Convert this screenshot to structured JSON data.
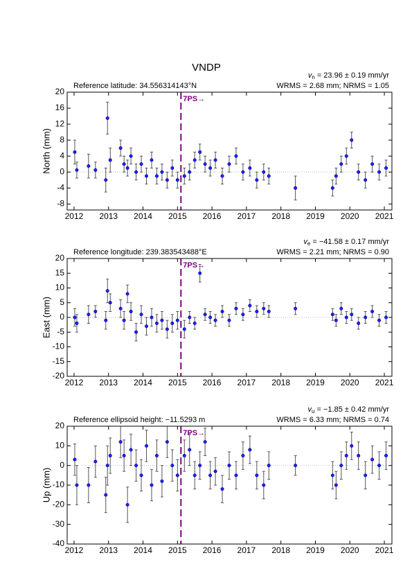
{
  "title": "VNDP",
  "chart_data": [
    {
      "type": "scatter",
      "ylabel": "North (mm)",
      "reference": "Reference latitude: 34.556314143°N",
      "rate": {
        "symbol": "v",
        "sub": "n",
        "text": " = 23.96 ± 0.19 mm/yr"
      },
      "stats": "WRMS = 2.68 mm; NRMS = 1.05",
      "xlim": [
        2011.8,
        2021.22
      ],
      "xticks": [
        2012,
        2013,
        2014,
        2015,
        2016,
        2017,
        2018,
        2019,
        2020,
        2021
      ],
      "ylim": [
        -9.5,
        20
      ],
      "yticks": [
        -8,
        -4,
        0,
        4,
        8,
        12,
        16,
        20
      ],
      "reference_line": 0,
      "event": {
        "x": 2015.1,
        "label": "7PS→",
        "color": "#800080"
      },
      "series": [
        {
          "color": "#1f1fff",
          "error_color": "#555555",
          "x": [
            2012.02,
            2012.08,
            2012.42,
            2012.62,
            2012.92,
            2012.97,
            2013.05,
            2013.35,
            2013.45,
            2013.55,
            2013.65,
            2013.8,
            2013.95,
            2014.1,
            2014.25,
            2014.4,
            2014.55,
            2014.7,
            2014.85,
            2015.0,
            2015.2,
            2015.35,
            2015.5,
            2015.65,
            2015.8,
            2015.95,
            2016.1,
            2016.3,
            2016.5,
            2016.7,
            2016.9,
            2017.1,
            2017.3,
            2017.5,
            2017.65,
            2018.42,
            2019.5,
            2019.6,
            2019.75,
            2019.9,
            2020.05,
            2020.25,
            2020.45,
            2020.65,
            2020.85,
            2021.05
          ],
          "values": [
            5,
            0.5,
            1.5,
            0.5,
            -2,
            13.5,
            3,
            6,
            2,
            1,
            4,
            0,
            2,
            -1,
            3,
            -1,
            0,
            -2,
            1,
            -2,
            -1,
            0,
            3,
            5,
            2,
            1,
            3,
            -1,
            2,
            4,
            0,
            1,
            -2,
            0,
            -1,
            -4,
            -4,
            -1,
            2,
            4,
            8,
            0,
            -2,
            2,
            0,
            1
          ],
          "errors": [
            3,
            2,
            3,
            2,
            3,
            4,
            3,
            2,
            2,
            2,
            2,
            2,
            2,
            2,
            2,
            2,
            2,
            2,
            2,
            2,
            2,
            2,
            2,
            2,
            2,
            2,
            2,
            2,
            2,
            2,
            2,
            2,
            2,
            2,
            2,
            3,
            2,
            2,
            2,
            2,
            2,
            2,
            2,
            2,
            2,
            2
          ]
        }
      ]
    },
    {
      "type": "scatter",
      "ylabel": "East (mm)",
      "reference": "Reference longitude: 239.383543488°E",
      "rate": {
        "symbol": "v",
        "sub": "e",
        "text": " = −41.58 ± 0.17 mm/yr"
      },
      "stats": "WRMS = 2.21 mm; NRMS = 0.90",
      "xlim": [
        2011.8,
        2021.22
      ],
      "xticks": [
        2012,
        2013,
        2014,
        2015,
        2016,
        2017,
        2018,
        2019,
        2020,
        2021
      ],
      "ylim": [
        -20,
        20
      ],
      "yticks": [
        -20,
        -15,
        -10,
        -5,
        0,
        5,
        10,
        15,
        20
      ],
      "reference_line": 0,
      "event": {
        "x": 2015.1,
        "label": "7PS→",
        "color": "#800080"
      },
      "series": [
        {
          "color": "#1f1fff",
          "error_color": "#555555",
          "x": [
            2012.02,
            2012.08,
            2012.42,
            2012.62,
            2012.92,
            2012.97,
            2013.05,
            2013.35,
            2013.45,
            2013.55,
            2013.65,
            2013.8,
            2013.95,
            2014.1,
            2014.25,
            2014.4,
            2014.55,
            2014.7,
            2014.85,
            2015.0,
            2015.2,
            2015.35,
            2015.5,
            2015.65,
            2015.8,
            2015.95,
            2016.1,
            2016.3,
            2016.5,
            2016.7,
            2016.9,
            2017.1,
            2017.3,
            2017.5,
            2017.65,
            2018.42,
            2019.5,
            2019.6,
            2019.75,
            2019.9,
            2020.05,
            2020.25,
            2020.45,
            2020.65,
            2020.85,
            2021.05
          ],
          "values": [
            0,
            -2,
            1,
            2,
            -1,
            9,
            5,
            3,
            -1,
            8,
            2,
            -5,
            1,
            -3,
            0,
            -2,
            -1,
            -4,
            -2,
            -1,
            -4,
            0,
            -2,
            15,
            1,
            0,
            -1,
            2,
            -1,
            3,
            1,
            4,
            2,
            3,
            2,
            3,
            1,
            -1,
            3,
            0,
            1,
            -2,
            0,
            2,
            -1,
            0
          ],
          "errors": [
            3,
            3,
            3,
            2,
            3,
            4,
            3,
            3,
            3,
            3,
            3,
            3,
            3,
            3,
            3,
            3,
            3,
            3,
            3,
            3,
            3,
            2,
            2,
            3,
            2,
            2,
            2,
            2,
            2,
            2,
            2,
            2,
            2,
            2,
            2,
            2,
            2,
            2,
            2,
            2,
            2,
            2,
            2,
            2,
            2,
            2
          ]
        }
      ]
    },
    {
      "type": "scatter",
      "ylabel": "Up (mm)",
      "reference": "Reference ellipsoid height: −11.5293 m",
      "rate": {
        "symbol": "v",
        "sub": "u",
        "text": " = −1.85 ± 0.42 mm/yr"
      },
      "stats": "WRMS = 6.33 mm; NRMS = 0.74",
      "xlim": [
        2011.8,
        2021.22
      ],
      "xticks": [
        2012,
        2013,
        2014,
        2015,
        2016,
        2017,
        2018,
        2019,
        2020,
        2021
      ],
      "ylim": [
        -40,
        20
      ],
      "yticks": [
        -40,
        -30,
        -20,
        -10,
        0,
        10,
        20
      ],
      "reference_line": 0,
      "event": {
        "x": 2015.1,
        "label": "7PS→",
        "color": "#800080"
      },
      "series": [
        {
          "color": "#1f1fff",
          "error_color": "#555555",
          "x": [
            2012.02,
            2012.08,
            2012.42,
            2012.62,
            2012.92,
            2012.97,
            2013.05,
            2013.35,
            2013.45,
            2013.55,
            2013.65,
            2013.8,
            2013.95,
            2014.1,
            2014.25,
            2014.4,
            2014.55,
            2014.7,
            2014.85,
            2015.0,
            2015.2,
            2015.35,
            2015.5,
            2015.65,
            2015.8,
            2015.95,
            2016.1,
            2016.3,
            2016.5,
            2016.7,
            2016.9,
            2017.1,
            2017.3,
            2017.5,
            2017.65,
            2018.42,
            2019.5,
            2019.6,
            2019.75,
            2019.9,
            2020.05,
            2020.25,
            2020.45,
            2020.65,
            2020.85,
            2021.05
          ],
          "values": [
            3,
            -10,
            -10,
            2,
            -15,
            0,
            5,
            12,
            5,
            -20,
            8,
            0,
            -5,
            10,
            -10,
            5,
            -8,
            12,
            0,
            -5,
            5,
            8,
            -5,
            0,
            12,
            -5,
            -3,
            -12,
            0,
            -5,
            5,
            8,
            -5,
            -10,
            0,
            0,
            -5,
            -10,
            0,
            5,
            10,
            5,
            -5,
            3,
            0,
            5
          ],
          "errors": [
            8,
            10,
            9,
            8,
            9,
            10,
            9,
            8,
            8,
            9,
            8,
            8,
            8,
            8,
            8,
            8,
            8,
            8,
            8,
            8,
            8,
            8,
            7,
            7,
            7,
            7,
            7,
            7,
            7,
            7,
            7,
            7,
            7,
            7,
            7,
            5,
            7,
            7,
            7,
            7,
            7,
            7,
            7,
            7,
            7,
            7
          ]
        }
      ]
    }
  ]
}
